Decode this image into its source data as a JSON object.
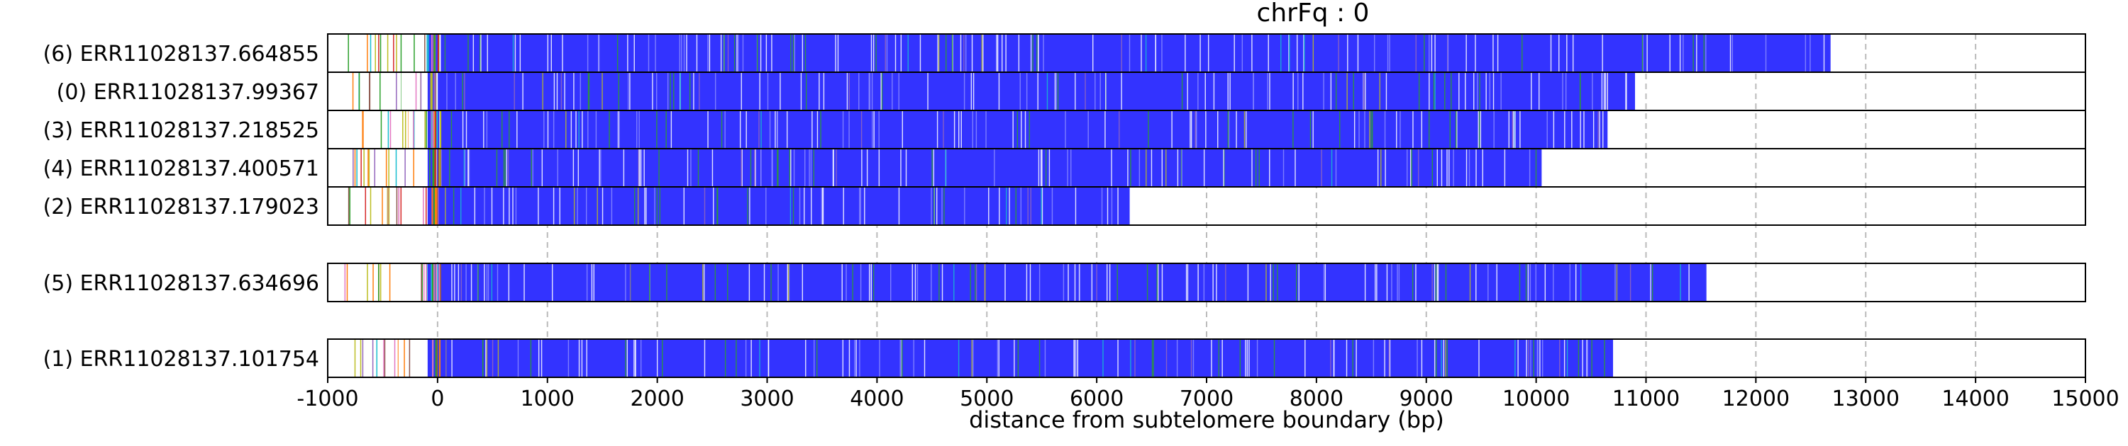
{
  "chart_data": {
    "type": "bar",
    "orientation": "horizontal",
    "title": "chrFq : 0",
    "xlabel": "distance from subtelomere boundary (bp)",
    "ylabel": "",
    "xlim": [
      -1000,
      15000
    ],
    "xticks": [
      -1000,
      0,
      1000,
      2000,
      3000,
      4000,
      5000,
      6000,
      7000,
      8000,
      9000,
      10000,
      11000,
      12000,
      13000,
      14000,
      15000
    ],
    "grid": "vertical dashed gridlines at each 1000 bp",
    "colors": {
      "bar": "#3333ff",
      "grid": "#bbbbbb",
      "frame": "#000000",
      "stripe_palette": [
        "#ffffff",
        "#2ca02c",
        "#9467bd",
        "#d62728",
        "#17becf",
        "#bcbd22",
        "#e377c2",
        "#8c564b",
        "#ff7f0e"
      ]
    },
    "groups": [
      {
        "reads": [
          {
            "label": "(6) ERR11028137.664855",
            "start": -1000,
            "end": 12680
          },
          {
            "label": "(0) ERR11028137.99367",
            "start": -1000,
            "end": 10900
          },
          {
            "label": "(3) ERR11028137.218525",
            "start": -1000,
            "end": 10650
          },
          {
            "label": "(4) ERR11028137.400571",
            "start": -1000,
            "end": 10050
          },
          {
            "label": "(2) ERR11028137.179023",
            "start": -1000,
            "end": 6300
          }
        ]
      },
      {
        "reads": [
          {
            "label": "(5) ERR11028137.634696",
            "start": -1000,
            "end": 11550
          }
        ]
      },
      {
        "reads": [
          {
            "label": "(1) ERR11028137.101754",
            "start": -1000,
            "end": 10700
          }
        ]
      }
    ]
  }
}
